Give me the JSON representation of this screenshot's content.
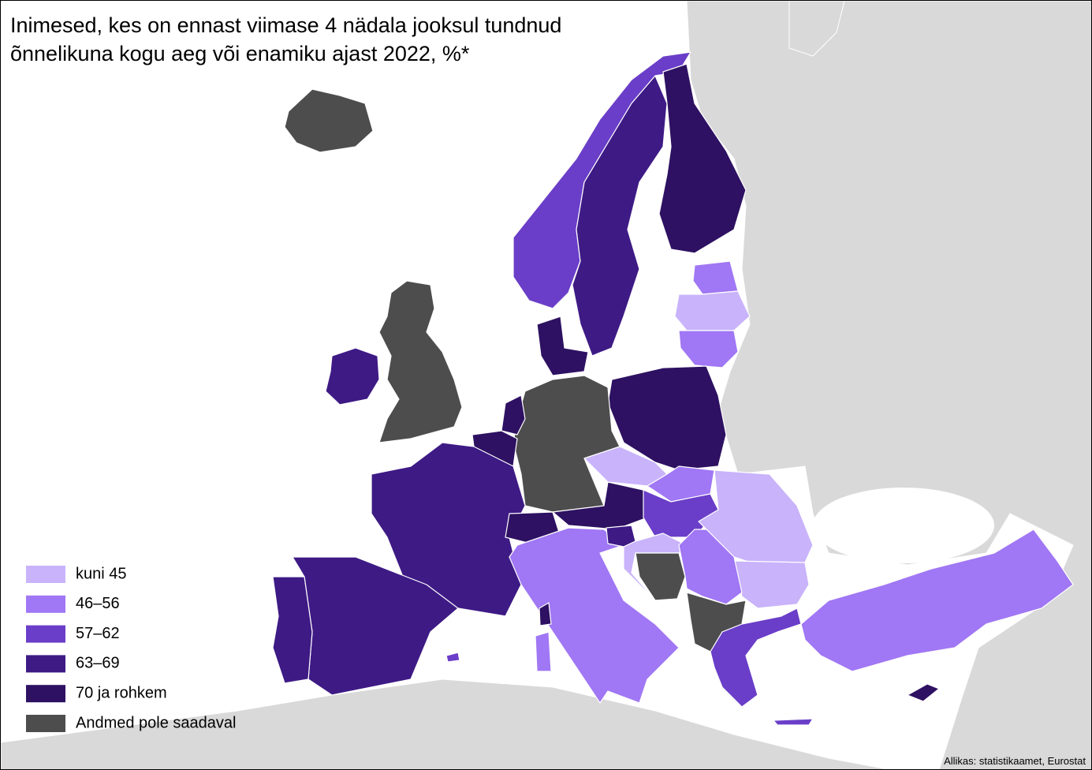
{
  "title": [
    "Inimesed, kes on ennast viimase 4 nädala jooksul tundnud",
    "õnnelikuna kogu aeg või enamiku ajast 2022, %*"
  ],
  "legend": {
    "items": [
      {
        "label": "kuni 45",
        "color": "#c9b3fb"
      },
      {
        "label": "46–56",
        "color": "#a077f4"
      },
      {
        "label": "57–62",
        "color": "#6a3ec8"
      },
      {
        "label": "63–69",
        "color": "#3e1a85"
      },
      {
        "label": "70 ja rohkem",
        "color": "#2e1162"
      },
      {
        "label": "Andmed pole saadaval",
        "color": "#4d4d4d"
      }
    ]
  },
  "source": "Allikas: statistikaamet, Eurostat"
}
